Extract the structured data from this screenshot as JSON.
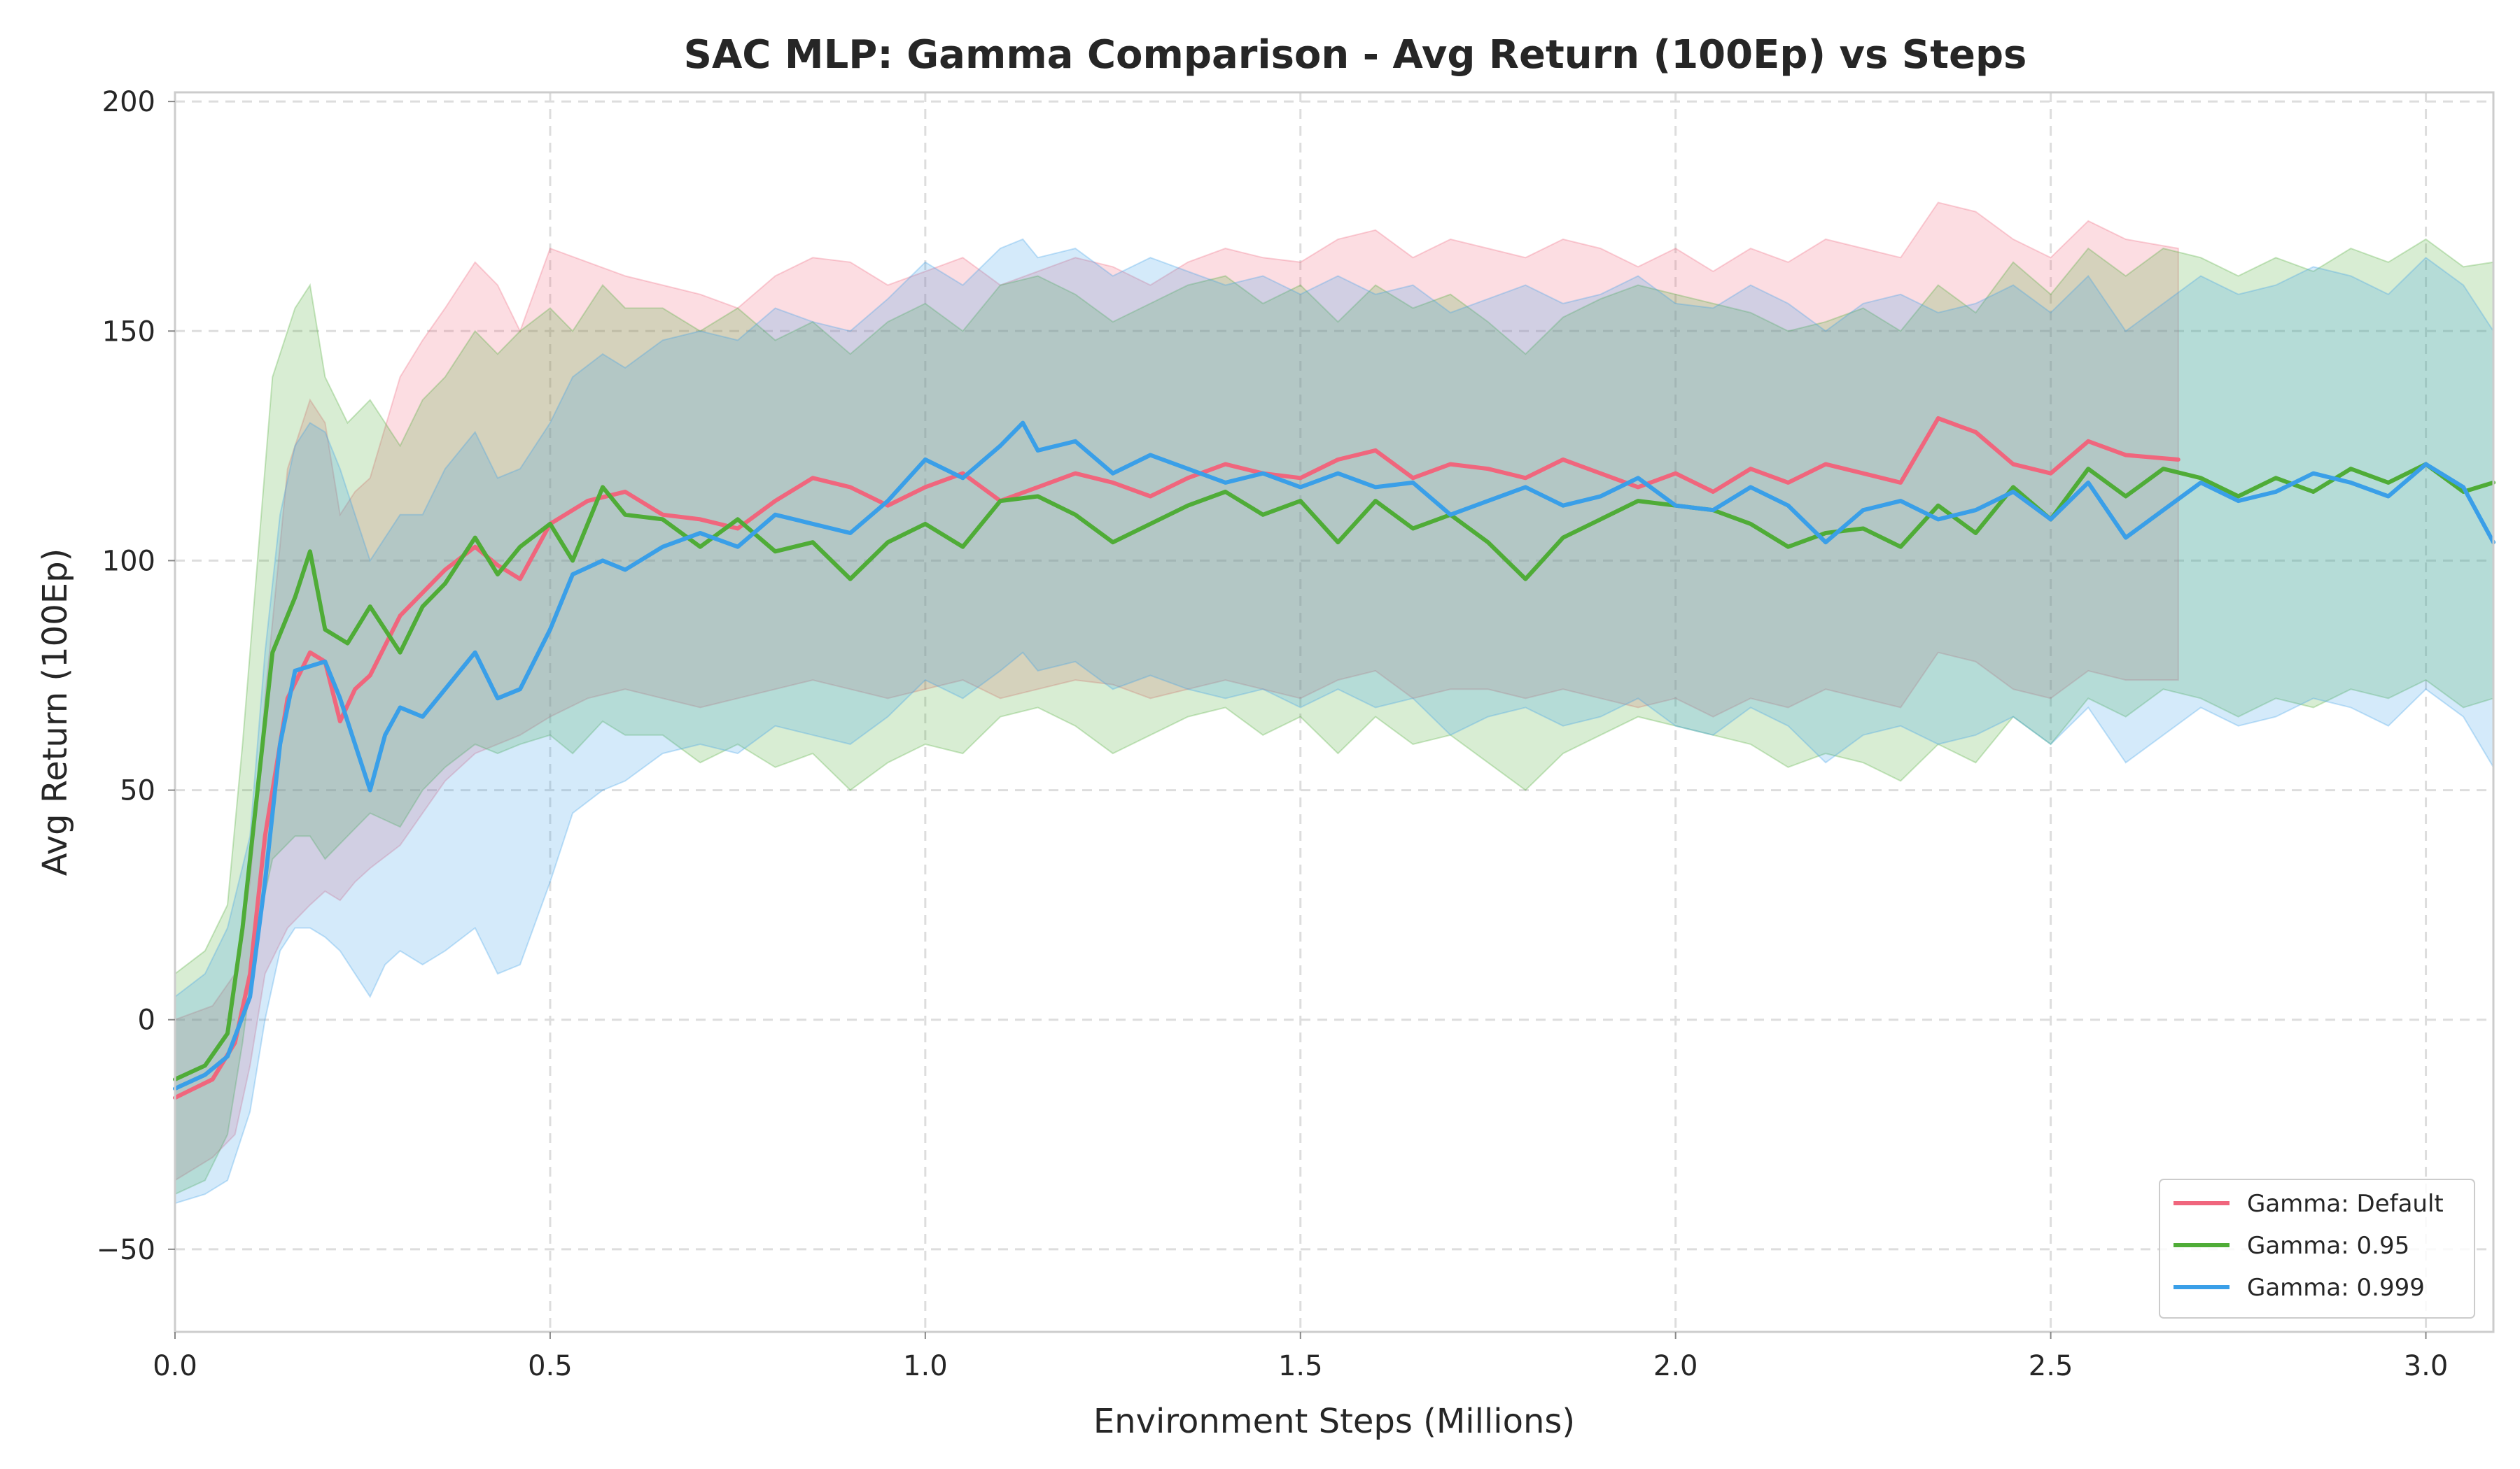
{
  "chart_data": {
    "type": "line",
    "title": "SAC MLP: Gamma Comparison - Avg Return (100Ep) vs Steps",
    "xlabel": "Environment Steps (Millions)",
    "ylabel": "Avg Return (100Ep)",
    "xlim": [
      0.0,
      3.09
    ],
    "ylim": [
      -68,
      202
    ],
    "xticks": [
      0.0,
      0.5,
      1.0,
      1.5,
      2.0,
      2.5,
      3.0
    ],
    "xtick_labels": [
      "0.0",
      "0.5",
      "1.0",
      "1.5",
      "2.0",
      "2.5",
      "3.0"
    ],
    "yticks": [
      -50,
      0,
      50,
      100,
      150,
      200
    ],
    "ytick_labels": [
      "−50",
      "0",
      "50",
      "100",
      "150",
      "200"
    ],
    "grid": true,
    "legend_position": "bottom-right",
    "series": [
      {
        "name": "Gamma: Default",
        "color": "#f0667d",
        "x": [
          0.0,
          0.05,
          0.08,
          0.1,
          0.12,
          0.15,
          0.18,
          0.2,
          0.22,
          0.24,
          0.26,
          0.3,
          0.33,
          0.36,
          0.4,
          0.43,
          0.46,
          0.5,
          0.55,
          0.6,
          0.65,
          0.7,
          0.75,
          0.8,
          0.85,
          0.9,
          0.95,
          1.0,
          1.05,
          1.1,
          1.15,
          1.2,
          1.25,
          1.3,
          1.35,
          1.4,
          1.45,
          1.5,
          1.55,
          1.6,
          1.65,
          1.7,
          1.75,
          1.8,
          1.85,
          1.9,
          1.95,
          2.0,
          2.05,
          2.1,
          2.15,
          2.2,
          2.25,
          2.3,
          2.35,
          2.4,
          2.45,
          2.5,
          2.55,
          2.6,
          2.67
        ],
        "y": [
          -17,
          -13,
          -5,
          10,
          40,
          70,
          80,
          78,
          65,
          72,
          75,
          88,
          93,
          98,
          103,
          99,
          96,
          108,
          113,
          115,
          110,
          109,
          107,
          113,
          118,
          116,
          112,
          116,
          119,
          113,
          116,
          119,
          117,
          114,
          118,
          121,
          119,
          118,
          122,
          124,
          118,
          121,
          120,
          118,
          122,
          119,
          116,
          119,
          115,
          120,
          117,
          121,
          119,
          117,
          131,
          128,
          121,
          119,
          126,
          123,
          122
        ],
        "lower": [
          -35,
          -30,
          -25,
          -10,
          10,
          20,
          25,
          28,
          26,
          30,
          33,
          38,
          45,
          52,
          58,
          60,
          62,
          66,
          70,
          72,
          70,
          68,
          70,
          72,
          74,
          72,
          70,
          72,
          74,
          70,
          72,
          74,
          73,
          70,
          72,
          74,
          72,
          70,
          74,
          76,
          70,
          72,
          72,
          70,
          72,
          70,
          68,
          70,
          66,
          70,
          68,
          72,
          70,
          68,
          80,
          78,
          72,
          70,
          76,
          74,
          74
        ],
        "upper": [
          0,
          3,
          10,
          30,
          70,
          120,
          135,
          130,
          110,
          115,
          118,
          140,
          148,
          155,
          165,
          160,
          150,
          168,
          165,
          162,
          160,
          158,
          155,
          162,
          166,
          165,
          160,
          163,
          166,
          160,
          163,
          166,
          164,
          160,
          165,
          168,
          166,
          165,
          170,
          172,
          166,
          170,
          168,
          166,
          170,
          168,
          164,
          168,
          163,
          168,
          165,
          170,
          168,
          166,
          178,
          176,
          170,
          166,
          174,
          170,
          168
        ]
      },
      {
        "name": "Gamma: 0.95",
        "color": "#4fac37",
        "x": [
          0.0,
          0.04,
          0.07,
          0.09,
          0.11,
          0.13,
          0.16,
          0.18,
          0.2,
          0.23,
          0.26,
          0.3,
          0.33,
          0.36,
          0.4,
          0.43,
          0.46,
          0.5,
          0.53,
          0.57,
          0.6,
          0.65,
          0.7,
          0.75,
          0.8,
          0.85,
          0.9,
          0.95,
          1.0,
          1.05,
          1.1,
          1.15,
          1.2,
          1.25,
          1.3,
          1.35,
          1.4,
          1.45,
          1.5,
          1.55,
          1.6,
          1.65,
          1.7,
          1.75,
          1.8,
          1.85,
          1.9,
          1.95,
          2.0,
          2.05,
          2.1,
          2.15,
          2.2,
          2.25,
          2.3,
          2.35,
          2.4,
          2.45,
          2.5,
          2.55,
          2.6,
          2.65,
          2.7,
          2.75,
          2.8,
          2.85,
          2.9,
          2.95,
          3.0,
          3.05,
          3.09
        ],
        "y": [
          -13,
          -10,
          -3,
          20,
          50,
          80,
          92,
          102,
          85,
          82,
          90,
          80,
          90,
          95,
          105,
          97,
          103,
          108,
          100,
          116,
          110,
          109,
          103,
          109,
          102,
          104,
          96,
          104,
          108,
          103,
          113,
          114,
          110,
          104,
          108,
          112,
          115,
          110,
          113,
          104,
          113,
          107,
          110,
          104,
          96,
          105,
          109,
          113,
          112,
          111,
          108,
          103,
          106,
          107,
          103,
          112,
          106,
          116,
          109,
          120,
          114,
          120,
          118,
          114,
          118,
          115,
          120,
          117,
          121,
          115,
          117
        ],
        "lower": [
          -38,
          -35,
          -25,
          -5,
          20,
          35,
          40,
          40,
          35,
          40,
          45,
          42,
          50,
          55,
          60,
          58,
          60,
          62,
          58,
          65,
          62,
          62,
          56,
          60,
          55,
          58,
          50,
          56,
          60,
          58,
          66,
          68,
          64,
          58,
          62,
          66,
          68,
          62,
          66,
          58,
          66,
          60,
          62,
          56,
          50,
          58,
          62,
          66,
          64,
          62,
          60,
          55,
          58,
          56,
          52,
          60,
          56,
          66,
          60,
          70,
          66,
          72,
          70,
          66,
          70,
          68,
          72,
          70,
          74,
          68,
          70
        ],
        "upper": [
          10,
          15,
          25,
          60,
          100,
          140,
          155,
          160,
          140,
          130,
          135,
          125,
          135,
          140,
          150,
          145,
          150,
          155,
          150,
          160,
          155,
          155,
          150,
          155,
          148,
          152,
          145,
          152,
          156,
          150,
          160,
          162,
          158,
          152,
          156,
          160,
          162,
          156,
          160,
          152,
          160,
          155,
          158,
          152,
          145,
          153,
          157,
          160,
          158,
          156,
          154,
          150,
          152,
          155,
          150,
          160,
          154,
          165,
          158,
          168,
          162,
          168,
          166,
          162,
          166,
          163,
          168,
          165,
          170,
          164,
          165
        ]
      },
      {
        "name": "Gamma: 0.999",
        "color": "#3a9fe8",
        "x": [
          0.0,
          0.04,
          0.07,
          0.1,
          0.12,
          0.14,
          0.16,
          0.18,
          0.2,
          0.22,
          0.24,
          0.26,
          0.28,
          0.3,
          0.33,
          0.36,
          0.4,
          0.43,
          0.46,
          0.5,
          0.53,
          0.57,
          0.6,
          0.65,
          0.7,
          0.75,
          0.8,
          0.85,
          0.9,
          0.95,
          1.0,
          1.05,
          1.1,
          1.13,
          1.15,
          1.2,
          1.25,
          1.3,
          1.35,
          1.4,
          1.45,
          1.5,
          1.55,
          1.6,
          1.65,
          1.7,
          1.75,
          1.8,
          1.85,
          1.9,
          1.95,
          2.0,
          2.05,
          2.1,
          2.15,
          2.2,
          2.25,
          2.3,
          2.35,
          2.4,
          2.45,
          2.5,
          2.55,
          2.6,
          2.65,
          2.7,
          2.75,
          2.8,
          2.85,
          2.9,
          2.95,
          3.0,
          3.05,
          3.09
        ],
        "y": [
          -15,
          -12,
          -8,
          5,
          30,
          60,
          76,
          77,
          78,
          70,
          60,
          50,
          62,
          68,
          66,
          72,
          80,
          70,
          72,
          85,
          97,
          100,
          98,
          103,
          106,
          103,
          110,
          108,
          106,
          113,
          122,
          118,
          125,
          130,
          124,
          126,
          119,
          123,
          120,
          117,
          119,
          116,
          119,
          116,
          117,
          110,
          113,
          116,
          112,
          114,
          118,
          112,
          111,
          116,
          112,
          104,
          111,
          113,
          109,
          111,
          115,
          109,
          117,
          105,
          111,
          117,
          113,
          115,
          119,
          117,
          114,
          121,
          116,
          104
        ],
        "lower": [
          -40,
          -38,
          -35,
          -20,
          0,
          15,
          20,
          20,
          18,
          15,
          10,
          5,
          12,
          15,
          12,
          15,
          20,
          10,
          12,
          30,
          45,
          50,
          52,
          58,
          60,
          58,
          64,
          62,
          60,
          66,
          74,
          70,
          76,
          80,
          76,
          78,
          72,
          75,
          72,
          70,
          72,
          68,
          72,
          68,
          70,
          62,
          66,
          68,
          64,
          66,
          70,
          64,
          62,
          68,
          64,
          56,
          62,
          64,
          60,
          62,
          66,
          60,
          68,
          56,
          62,
          68,
          64,
          66,
          70,
          68,
          64,
          72,
          66,
          55
        ],
        "upper": [
          5,
          10,
          20,
          40,
          80,
          110,
          125,
          130,
          128,
          120,
          110,
          100,
          105,
          110,
          110,
          120,
          128,
          118,
          120,
          130,
          140,
          145,
          142,
          148,
          150,
          148,
          155,
          152,
          150,
          157,
          165,
          160,
          168,
          170,
          166,
          168,
          162,
          166,
          163,
          160,
          162,
          158,
          162,
          158,
          160,
          154,
          157,
          160,
          156,
          158,
          162,
          156,
          155,
          160,
          156,
          150,
          156,
          158,
          154,
          156,
          160,
          154,
          162,
          150,
          156,
          162,
          158,
          160,
          164,
          162,
          158,
          166,
          160,
          150
        ]
      }
    ]
  }
}
